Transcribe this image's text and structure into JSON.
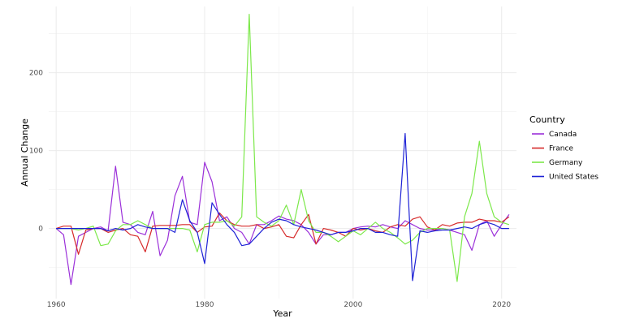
{
  "chart_data": {
    "type": "line",
    "title": "",
    "xlabel": "Year",
    "ylabel": "Annual Change",
    "xlim": [
      1959,
      2022
    ],
    "ylim": [
      -90,
      285
    ],
    "x_ticks": [
      1960,
      1980,
      2000,
      2020
    ],
    "y_ticks": [
      0,
      100,
      200
    ],
    "grid": true,
    "legend_position": "right",
    "legend_title": "Country",
    "x": [
      1960,
      1961,
      1962,
      1963,
      1964,
      1965,
      1966,
      1967,
      1968,
      1969,
      1970,
      1971,
      1972,
      1973,
      1974,
      1975,
      1976,
      1977,
      1978,
      1979,
      1980,
      1981,
      1982,
      1983,
      1984,
      1985,
      1986,
      1987,
      1988,
      1989,
      1990,
      1991,
      1992,
      1993,
      1994,
      1995,
      1996,
      1997,
      1998,
      1999,
      2000,
      2001,
      2002,
      2003,
      2004,
      2005,
      2006,
      2007,
      2008,
      2009,
      2010,
      2011,
      2012,
      2013,
      2014,
      2015,
      2016,
      2017,
      2018,
      2019,
      2020,
      2021
    ],
    "series": [
      {
        "name": "Canada",
        "color": "#9B30D9",
        "values": [
          0,
          -8,
          -72,
          -10,
          -5,
          0,
          2,
          -3,
          80,
          8,
          5,
          -5,
          -8,
          22,
          -35,
          -15,
          42,
          67,
          8,
          5,
          85,
          60,
          10,
          15,
          0,
          -5,
          -20,
          5,
          5,
          10,
          16,
          12,
          10,
          5,
          -5,
          -20,
          -8,
          -8,
          -5,
          -5,
          0,
          2,
          3,
          2,
          5,
          2,
          0,
          10,
          5,
          0,
          -2,
          -2,
          0,
          -2,
          -5,
          -8,
          -28,
          5,
          10,
          -10,
          5,
          18
        ]
      },
      {
        "name": "France",
        "color": "#D62A2A",
        "values": [
          0,
          3,
          3,
          -33,
          -2,
          0,
          0,
          -5,
          -2,
          0,
          -8,
          -10,
          -30,
          3,
          4,
          4,
          4,
          5,
          5,
          -5,
          2,
          3,
          20,
          10,
          5,
          3,
          3,
          5,
          0,
          2,
          5,
          -10,
          -12,
          5,
          18,
          -20,
          0,
          -2,
          -5,
          -10,
          0,
          -2,
          0,
          -3,
          -5,
          2,
          5,
          3,
          12,
          15,
          2,
          -2,
          5,
          3,
          7,
          8,
          8,
          12,
          10,
          10,
          8,
          15
        ]
      },
      {
        "name": "Germany",
        "color": "#7CE84A",
        "values": [
          0,
          0,
          0,
          -2,
          0,
          3,
          -22,
          -20,
          -3,
          5,
          5,
          10,
          5,
          0,
          0,
          0,
          0,
          0,
          -2,
          -30,
          5,
          8,
          8,
          10,
          3,
          15,
          275,
          15,
          8,
          3,
          10,
          30,
          5,
          50,
          10,
          -5,
          -5,
          -10,
          -17,
          -10,
          -3,
          -8,
          0,
          8,
          0,
          -5,
          -12,
          -20,
          -15,
          -5,
          0,
          0,
          0,
          -2,
          -68,
          15,
          45,
          112,
          45,
          15,
          8,
          5
        ]
      },
      {
        "name": "United States",
        "color": "#1E22D6",
        "values": [
          0,
          0,
          0,
          0,
          0,
          0,
          0,
          -3,
          0,
          -2,
          0,
          5,
          2,
          0,
          0,
          0,
          -5,
          37,
          10,
          -5,
          -45,
          33,
          18,
          5,
          -5,
          -22,
          -20,
          -10,
          0,
          8,
          12,
          10,
          5,
          2,
          0,
          -2,
          -5,
          -8,
          -5,
          -5,
          -3,
          0,
          0,
          -5,
          -5,
          -8,
          -10,
          122,
          -67,
          -3,
          -5,
          -3,
          -2,
          -2,
          0,
          2,
          0,
          5,
          8,
          5,
          0,
          0
        ]
      }
    ]
  }
}
